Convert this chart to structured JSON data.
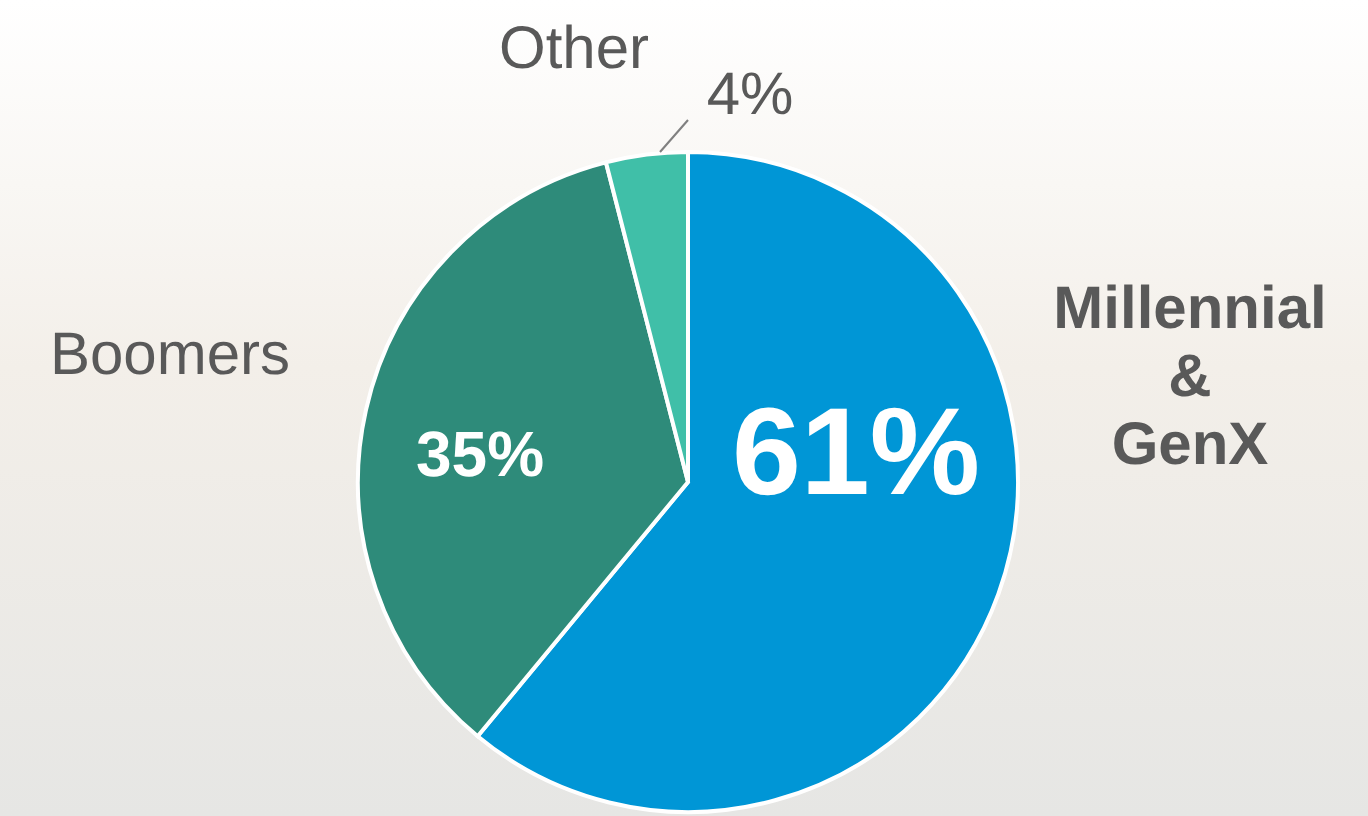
{
  "chart_data": {
    "type": "pie",
    "categories": [
      "Millennial & GenX",
      "Boomers",
      "Other"
    ],
    "values": [
      61,
      35,
      4
    ],
    "colors": [
      "#0096d6",
      "#2e8b7a",
      "#40bfa8"
    ],
    "value_labels": [
      "61%",
      "35%",
      "4%"
    ]
  }
}
